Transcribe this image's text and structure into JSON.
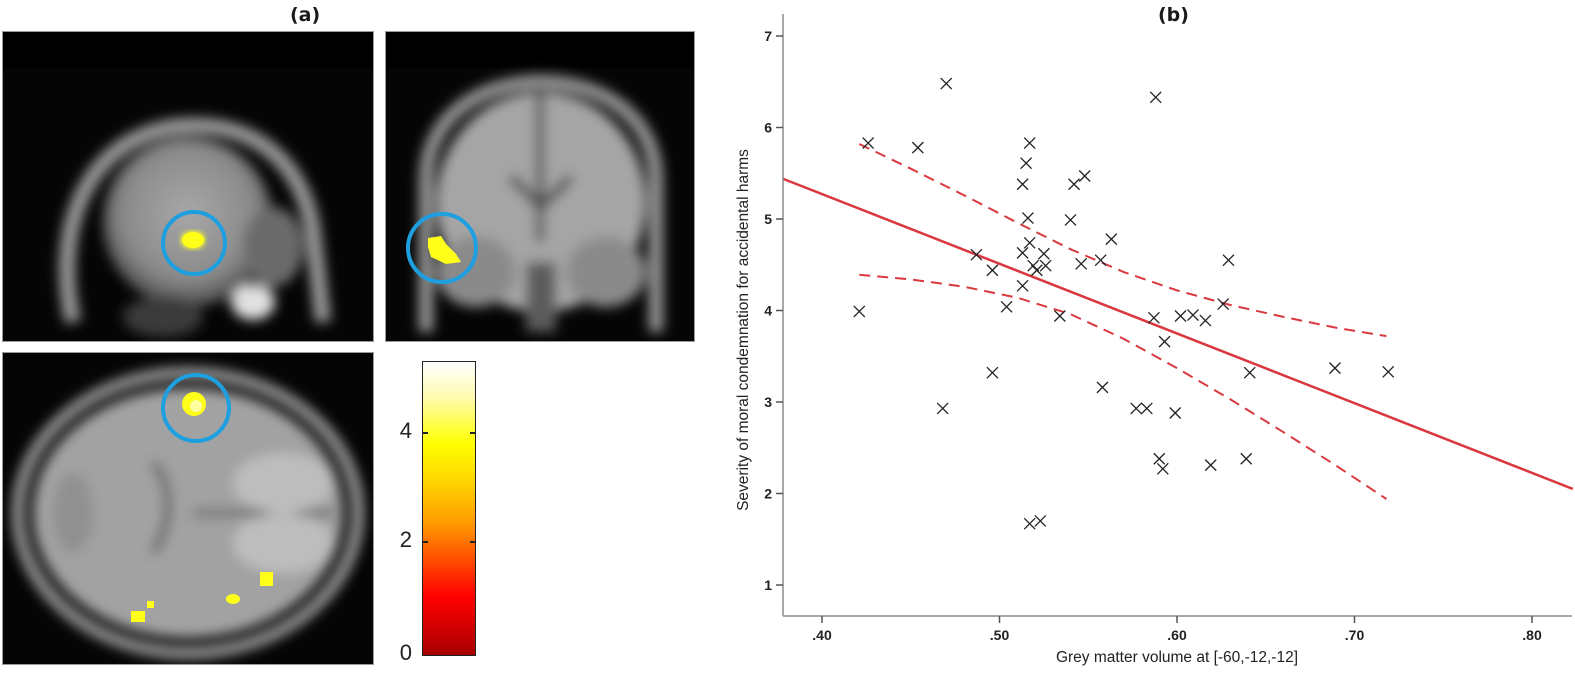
{
  "panels": {
    "a": {
      "label": "(a)"
    },
    "b": {
      "label": "(b)"
    }
  },
  "brain_images": {
    "views": [
      "sagittal",
      "coronal",
      "axial"
    ],
    "highlight_circle_color": "#1e9fe0",
    "activation_color": "#ffff1a"
  },
  "colorbar": {
    "ticks": [
      "4",
      "2",
      "0"
    ],
    "range": [
      0,
      5.2
    ],
    "colors": [
      "#a60000",
      "#ff0000",
      "#ff9a00",
      "#ffff00",
      "#ffffff"
    ]
  },
  "chart_data": {
    "type": "scatter",
    "title": "(b)",
    "xlabel": "Grey matter volume at [-60,-12,-12]",
    "ylabel": "Severity of moral condemnation for accidental harms",
    "xlim": [
      0.378,
      0.823
    ],
    "ylim": [
      0.5,
      7.4
    ],
    "xticks": [
      ".40",
      ".50",
      ".60",
      ".70",
      ".80"
    ],
    "yticks": [
      "1",
      "2",
      "3",
      "4",
      "5",
      "6",
      "7"
    ],
    "grid": false,
    "marker": "x",
    "marker_color": "#222222",
    "line_color": "#d9393e",
    "points": [
      [
        0.421,
        3.99
      ],
      [
        0.426,
        5.83
      ],
      [
        0.454,
        5.78
      ],
      [
        0.47,
        6.48
      ],
      [
        0.468,
        2.93
      ],
      [
        0.487,
        4.61
      ],
      [
        0.496,
        4.44
      ],
      [
        0.496,
        3.32
      ],
      [
        0.504,
        4.04
      ],
      [
        0.513,
        4.27
      ],
      [
        0.513,
        5.38
      ],
      [
        0.515,
        5.61
      ],
      [
        0.517,
        5.83
      ],
      [
        0.516,
        5.01
      ],
      [
        0.513,
        4.63
      ],
      [
        0.517,
        4.74
      ],
      [
        0.519,
        4.49
      ],
      [
        0.521,
        4.44
      ],
      [
        0.526,
        4.49
      ],
      [
        0.525,
        4.62
      ],
      [
        0.517,
        1.67
      ],
      [
        0.523,
        1.7
      ],
      [
        0.534,
        3.94
      ],
      [
        0.54,
        4.99
      ],
      [
        0.542,
        5.38
      ],
      [
        0.548,
        5.47
      ],
      [
        0.546,
        4.51
      ],
      [
        0.557,
        4.55
      ],
      [
        0.563,
        4.78
      ],
      [
        0.558,
        3.16
      ],
      [
        0.577,
        2.93
      ],
      [
        0.583,
        2.93
      ],
      [
        0.587,
        3.92
      ],
      [
        0.593,
        3.66
      ],
      [
        0.59,
        2.38
      ],
      [
        0.592,
        2.27
      ],
      [
        0.599,
        2.88
      ],
      [
        0.602,
        3.94
      ],
      [
        0.609,
        3.95
      ],
      [
        0.616,
        3.89
      ],
      [
        0.619,
        2.31
      ],
      [
        0.626,
        4.07
      ],
      [
        0.629,
        4.55
      ],
      [
        0.641,
        3.32
      ],
      [
        0.639,
        2.38
      ],
      [
        0.689,
        3.37
      ],
      [
        0.719,
        3.33
      ],
      [
        0.588,
        6.33
      ]
    ],
    "regression_line": {
      "x": [
        0.378,
        0.823
      ],
      "y": [
        5.44,
        2.05
      ],
      "style": "solid"
    },
    "ci_upper": {
      "style": "dashed",
      "x": [
        0.421,
        0.45,
        0.48,
        0.51,
        0.54,
        0.57,
        0.6,
        0.63,
        0.66,
        0.69,
        0.718
      ],
      "y": [
        5.82,
        5.55,
        5.26,
        4.96,
        4.67,
        4.42,
        4.22,
        4.06,
        3.93,
        3.81,
        3.72
      ]
    },
    "ci_lower": {
      "style": "dashed",
      "x": [
        0.421,
        0.45,
        0.48,
        0.51,
        0.54,
        0.57,
        0.6,
        0.63,
        0.66,
        0.69,
        0.718
      ],
      "y": [
        4.39,
        4.34,
        4.26,
        4.14,
        3.96,
        3.69,
        3.37,
        3.03,
        2.67,
        2.3,
        1.94
      ]
    }
  }
}
